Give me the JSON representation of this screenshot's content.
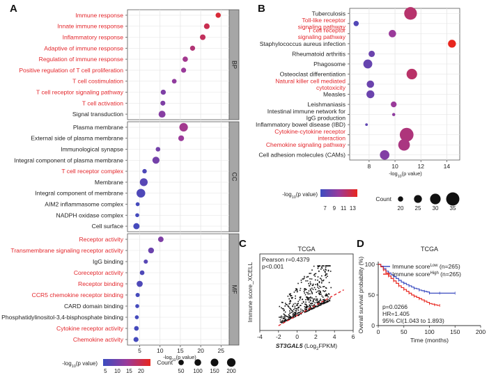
{
  "colors": {
    "low": "#3b4cc0",
    "mid": "#9a3a9a",
    "high": "#e8261e",
    "red_label": "#e3262b",
    "black_label": "#222222",
    "strip": "#a6a6a6",
    "grid": "#e6e6e6"
  },
  "chart_data": [
    {
      "panel": "A",
      "type": "scatter",
      "xlabel": "-log",
      "xlabel_sub": "10",
      "xlabel_tail": "(p value)",
      "xticks": [
        5,
        10,
        15,
        20,
        25
      ],
      "xlim": [
        2,
        27
      ],
      "groups": [
        {
          "name": "BP",
          "items": [
            {
              "term": "Immune response",
              "x": 24.3,
              "count": 45,
              "neglog": 22,
              "red": true
            },
            {
              "term": "Innate immune response",
              "x": 21.5,
              "count": 60,
              "neglog": 20,
              "red": true
            },
            {
              "term": "Inflammatory response",
              "x": 20.5,
              "count": 58,
              "neglog": 19,
              "red": true
            },
            {
              "term": "Adaptive of immune response",
              "x": 18.0,
              "count": 42,
              "neglog": 17,
              "red": true
            },
            {
              "term": "Regulation of immune response",
              "x": 16.2,
              "count": 48,
              "neglog": 15,
              "red": true
            },
            {
              "term": "Positive regulation of T cell proliferation",
              "x": 15.8,
              "count": 40,
              "neglog": 14,
              "red": true
            },
            {
              "term": "T cell costimulation",
              "x": 13.5,
              "count": 30,
              "neglog": 13,
              "red": true
            },
            {
              "term": "T cell receptor signaling pathway",
              "x": 10.8,
              "count": 42,
              "neglog": 11,
              "red": true
            },
            {
              "term": "T cell activation",
              "x": 10.7,
              "count": 36,
              "neglog": 11,
              "red": true
            },
            {
              "term": "Signal transduction",
              "x": 10.5,
              "count": 110,
              "neglog": 12,
              "red": false
            }
          ]
        },
        {
          "name": "CC",
          "items": [
            {
              "term": "Plasma membrane",
              "x": 15.8,
              "count": 200,
              "neglog": 15,
              "red": false
            },
            {
              "term": "External side of plasma membrane",
              "x": 15.2,
              "count": 62,
              "neglog": 14,
              "red": false
            },
            {
              "term": "Immunological synapse",
              "x": 9.5,
              "count": 28,
              "neglog": 10,
              "red": false
            },
            {
              "term": "Integral component of plasma membrane",
              "x": 9.0,
              "count": 120,
              "neglog": 10,
              "red": false
            },
            {
              "term": "T cell receptor complex",
              "x": 6.2,
              "count": 25,
              "neglog": 6,
              "red": true
            },
            {
              "term": "Membrane",
              "x": 6.0,
              "count": 160,
              "neglog": 7,
              "red": false
            },
            {
              "term": "Integral component of membrane",
              "x": 5.3,
              "count": 210,
              "neglog": 6,
              "red": false
            },
            {
              "term": "AIM2 inflammasome complex",
              "x": 4.5,
              "count": 15,
              "neglog": 5,
              "red": false
            },
            {
              "term": "NADPH oxidase complex",
              "x": 4.4,
              "count": 15,
              "neglog": 5,
              "red": false
            },
            {
              "term": "Cell surface",
              "x": 4.2,
              "count": 80,
              "neglog": 5,
              "red": false
            }
          ]
        },
        {
          "name": "MF",
          "items": [
            {
              "term": "Receptor activity",
              "x": 10.2,
              "count": 55,
              "neglog": 11,
              "red": true
            },
            {
              "term": "Transmembrane signaling receptor activity",
              "x": 7.8,
              "count": 65,
              "neglog": 9,
              "red": true
            },
            {
              "term": "IgG binding",
              "x": 6.5,
              "count": 20,
              "neglog": 7,
              "red": false
            },
            {
              "term": "Coreceptor activity",
              "x": 5.6,
              "count": 30,
              "neglog": 6,
              "red": true
            },
            {
              "term": "Receptor binding",
              "x": 5.0,
              "count": 75,
              "neglog": 6,
              "red": true
            },
            {
              "term": "CCR5 chemokine receptor binding",
              "x": 4.5,
              "count": 20,
              "neglog": 5,
              "red": true
            },
            {
              "term": "CARD domain binding",
              "x": 4.4,
              "count": 15,
              "neglog": 5,
              "red": false
            },
            {
              "term": "Phosphatidylinositol-3,4-bisphosphate binding",
              "x": 4.3,
              "count": 15,
              "neglog": 5,
              "red": false
            },
            {
              "term": "Cytokine receptor activity",
              "x": 4.2,
              "count": 30,
              "neglog": 5,
              "red": true
            },
            {
              "term": "Chemokine activity",
              "x": 4.1,
              "count": 40,
              "neglog": 5,
              "red": true
            }
          ]
        }
      ],
      "color_legend": {
        "title": "-log",
        "title_sub": "10",
        "title_tail": "(p value)",
        "ticks": [
          5,
          10,
          15,
          20
        ],
        "range": [
          4,
          24
        ]
      },
      "size_legend": {
        "title": "Count",
        "values": [
          50,
          100,
          150,
          200
        ]
      }
    },
    {
      "panel": "B",
      "type": "scatter",
      "xlabel": "-log",
      "xlabel_sub": "10",
      "xlabel_tail": "(p value)",
      "xticks": [
        8,
        10,
        12,
        14
      ],
      "xlim": [
        6.5,
        15
      ],
      "items": [
        {
          "term": "Tuberculosis",
          "x": 11.2,
          "count": 34,
          "neglog": 11.5,
          "red": false
        },
        {
          "term": "Toll-like receptor|signaling pathway",
          "x": 7.0,
          "count": 20,
          "neglog": 7.0,
          "red": true
        },
        {
          "term": "T cell receptor|signaling pathway",
          "x": 9.8,
          "count": 24,
          "neglog": 10.0,
          "red": true
        },
        {
          "term": "Staphylococcus aureus infection",
          "x": 14.4,
          "count": 25,
          "neglog": 14.0,
          "red": false
        },
        {
          "term": "Rheumatoid arthritis",
          "x": 8.2,
          "count": 22,
          "neglog": 8.0,
          "red": false
        },
        {
          "term": "Phagosome",
          "x": 7.9,
          "count": 27,
          "neglog": 7.8,
          "red": false
        },
        {
          "term": "Osteoclast differentiation",
          "x": 11.3,
          "count": 30,
          "neglog": 11.6,
          "red": false
        },
        {
          "term": "Natural killer cell mediated|cytotoxicity",
          "x": 8.1,
          "count": 24,
          "neglog": 8.0,
          "red": true
        },
        {
          "term": "Measles",
          "x": 8.1,
          "count": 25,
          "neglog": 8.0,
          "red": false
        },
        {
          "term": "Leishmaniasis",
          "x": 9.9,
          "count": 21,
          "neglog": 10.0,
          "red": false
        },
        {
          "term": "Intestinal immune network for|IgG production",
          "x": 9.9,
          "count": 16,
          "neglog": 9.5,
          "red": false
        },
        {
          "term": "Inflammatory bowel disease (IBD)",
          "x": 7.8,
          "count": 15,
          "neglog": 7.5,
          "red": false
        },
        {
          "term": "Cytokine-cytokine receptor|interaction",
          "x": 10.9,
          "count": 36,
          "neglog": 11.0,
          "red": true
        },
        {
          "term": "Chemokine signaling pathway",
          "x": 10.7,
          "count": 32,
          "neglog": 10.8,
          "red": true
        },
        {
          "term": "Cell adhesion molecules (CAMs)",
          "x": 9.2,
          "count": 28,
          "neglog": 9.0,
          "red": false
        }
      ],
      "color_legend": {
        "title": "-log",
        "title_sub": "10",
        "title_tail": "(p value)",
        "ticks": [
          7,
          9,
          11,
          13
        ],
        "range": [
          6,
          14
        ]
      },
      "size_legend": {
        "title": "Count",
        "values": [
          20,
          25,
          30,
          35
        ]
      }
    },
    {
      "panel": "C",
      "type": "scatter",
      "title": "TCGA",
      "xlabel": "ST3GAL5",
      "xlabel_tail": " (Log",
      "xlabel_sub": "2",
      "xlabel_end": "FPKM)",
      "ylabel": "Immune score_XCELL",
      "xticks": [
        -4,
        -2,
        0,
        2,
        4,
        6
      ],
      "xlim": [
        -4,
        6
      ],
      "ylim": [
        -0.02,
        0.3
      ],
      "annotation": [
        "Pearson r=0.4379",
        "p<0.001"
      ],
      "trend": {
        "x": [
          -2,
          5
        ],
        "y": [
          0.0,
          0.15
        ]
      }
    },
    {
      "panel": "D",
      "type": "line",
      "title": "TCGA",
      "xlabel": "Time (months)",
      "ylabel": "Overall survival probability (%)",
      "xticks": [
        0,
        50,
        100,
        150,
        200
      ],
      "yticks": [
        0,
        50,
        100
      ],
      "xlim": [
        0,
        200
      ],
      "ylim": [
        0,
        100
      ],
      "legend": [
        {
          "label": "Immune score",
          "sup": "Low",
          "n": "(n=265)",
          "color": "#3b4cc0"
        },
        {
          "label": "Immune score",
          "sup": "High",
          "n": "(n=265)",
          "color": "#e8261e"
        }
      ],
      "stats": [
        "p=0.0266",
        "HR=1.405",
        "95% CI(1.043 to 1.893)"
      ],
      "series": [
        {
          "name": "Immune score Low",
          "color": "#3b4cc0",
          "x": [
            0,
            5,
            10,
            15,
            20,
            25,
            30,
            35,
            40,
            45,
            50,
            55,
            60,
            65,
            70,
            75,
            80,
            85,
            90,
            95,
            100,
            110,
            120,
            130,
            150
          ],
          "y": [
            100,
            97,
            93,
            89,
            86,
            83,
            80,
            77,
            74,
            71,
            69,
            67,
            65,
            63,
            61,
            60,
            58,
            57,
            56,
            55,
            53,
            53,
            53,
            53,
            53
          ]
        },
        {
          "name": "Immune score High",
          "color": "#e8261e",
          "x": [
            0,
            5,
            10,
            15,
            20,
            25,
            30,
            35,
            40,
            45,
            50,
            55,
            60,
            65,
            70,
            75,
            80,
            85,
            90,
            95,
            100,
            105,
            110,
            115,
            120
          ],
          "y": [
            100,
            96,
            91,
            86,
            81,
            77,
            73,
            69,
            65,
            62,
            59,
            56,
            53,
            50,
            48,
            46,
            44,
            42,
            40,
            38,
            36,
            35,
            34,
            33,
            33
          ]
        }
      ]
    }
  ],
  "panel_labels": {
    "a": "A",
    "b": "B",
    "c": "C",
    "d": "D"
  }
}
